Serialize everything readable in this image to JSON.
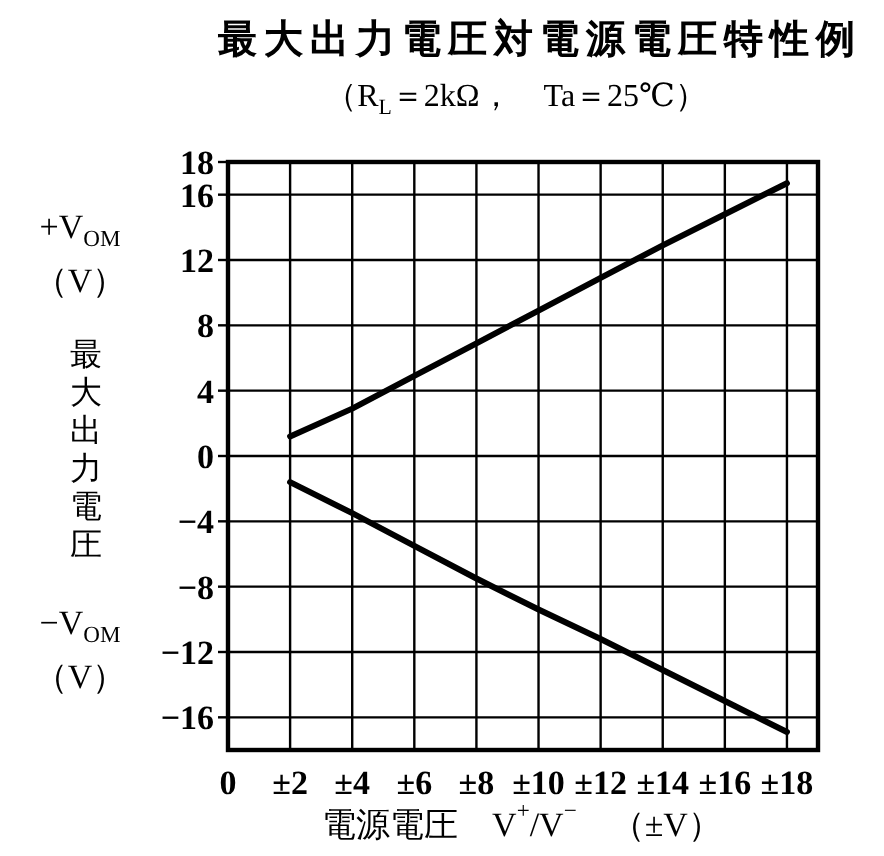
{
  "chart_data": {
    "type": "line",
    "title": "最大出力電圧対電源電圧特性例",
    "subtitle": "（R$_{L}$＝2kΩ，　Ta＝25℃）",
    "xlabel": "電源電圧　V$^{+}$/V$^{−}$　（±V）",
    "ylabel": "最大出力電圧",
    "annotations": [
      "+V$_{OM}$\n（V）",
      "−V$_{OM}$\n（V）"
    ],
    "x": [
      2,
      4,
      6,
      8,
      10,
      12,
      14,
      16,
      18
    ],
    "series": [
      {
        "color": "#000000",
        "values": [
          1.2,
          2.9,
          4.9,
          6.9,
          8.9,
          10.9,
          12.9,
          14.8,
          16.7
        ]
      },
      {
        "color": "#000000",
        "values": [
          -1.6,
          -3.5,
          -5.5,
          -7.5,
          -9.4,
          -11.2,
          -13.1,
          -15.0,
          -16.9
        ]
      }
    ],
    "xlim": [
      0,
      19
    ],
    "xticks": [
      0,
      {
        "value": 2,
        "label": "±2"
      },
      {
        "value": 4,
        "label": "±4"
      },
      {
        "value": 6,
        "label": "±6"
      },
      {
        "value": 8,
        "label": "±8"
      },
      {
        "value": 10,
        "label": "±10"
      },
      {
        "value": 12,
        "label": "±12"
      },
      {
        "value": 14,
        "label": "±14"
      },
      {
        "value": 16,
        "label": "±16"
      },
      {
        "value": 18,
        "label": "±18"
      }
    ],
    "ylim": [
      -18,
      18
    ],
    "yticks": [
      -16,
      -12,
      -8,
      -4,
      0,
      4,
      8,
      12,
      16,
      18
    ],
    "grid": true
  }
}
